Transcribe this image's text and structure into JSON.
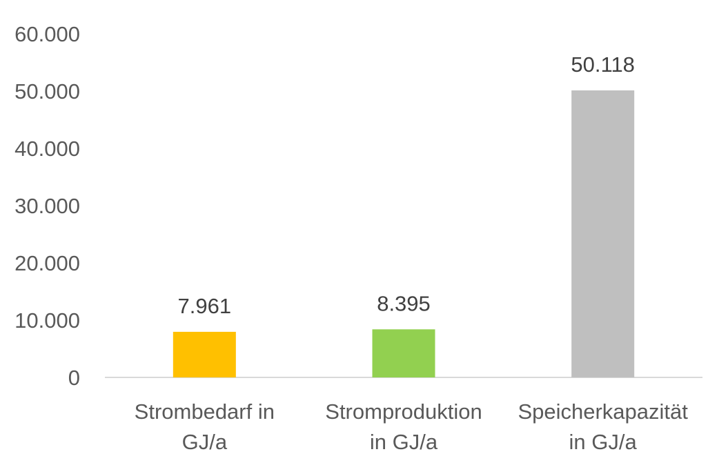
{
  "chart_data": {
    "type": "bar",
    "title": "",
    "xlabel": "",
    "ylabel": "",
    "ylim": [
      0,
      60000
    ],
    "yticks": [
      0,
      10000,
      20000,
      30000,
      40000,
      50000,
      60000
    ],
    "ytick_labels": [
      "0",
      "10.000",
      "20.000",
      "30.000",
      "40.000",
      "50.000",
      "60.000"
    ],
    "grid": false,
    "categories": [
      [
        "Strombedarf in",
        "GJ/a"
      ],
      [
        "Stromproduktion",
        "in GJ/a"
      ],
      [
        "Speicherkapazität",
        "in GJ/a"
      ]
    ],
    "values": [
      7961,
      8395,
      50118
    ],
    "value_labels": [
      "7.961",
      "8.395",
      "50.118"
    ],
    "colors": [
      "#FFC000",
      "#92D050",
      "#BFBFBF"
    ],
    "axis_color": "#D9D9D9"
  }
}
